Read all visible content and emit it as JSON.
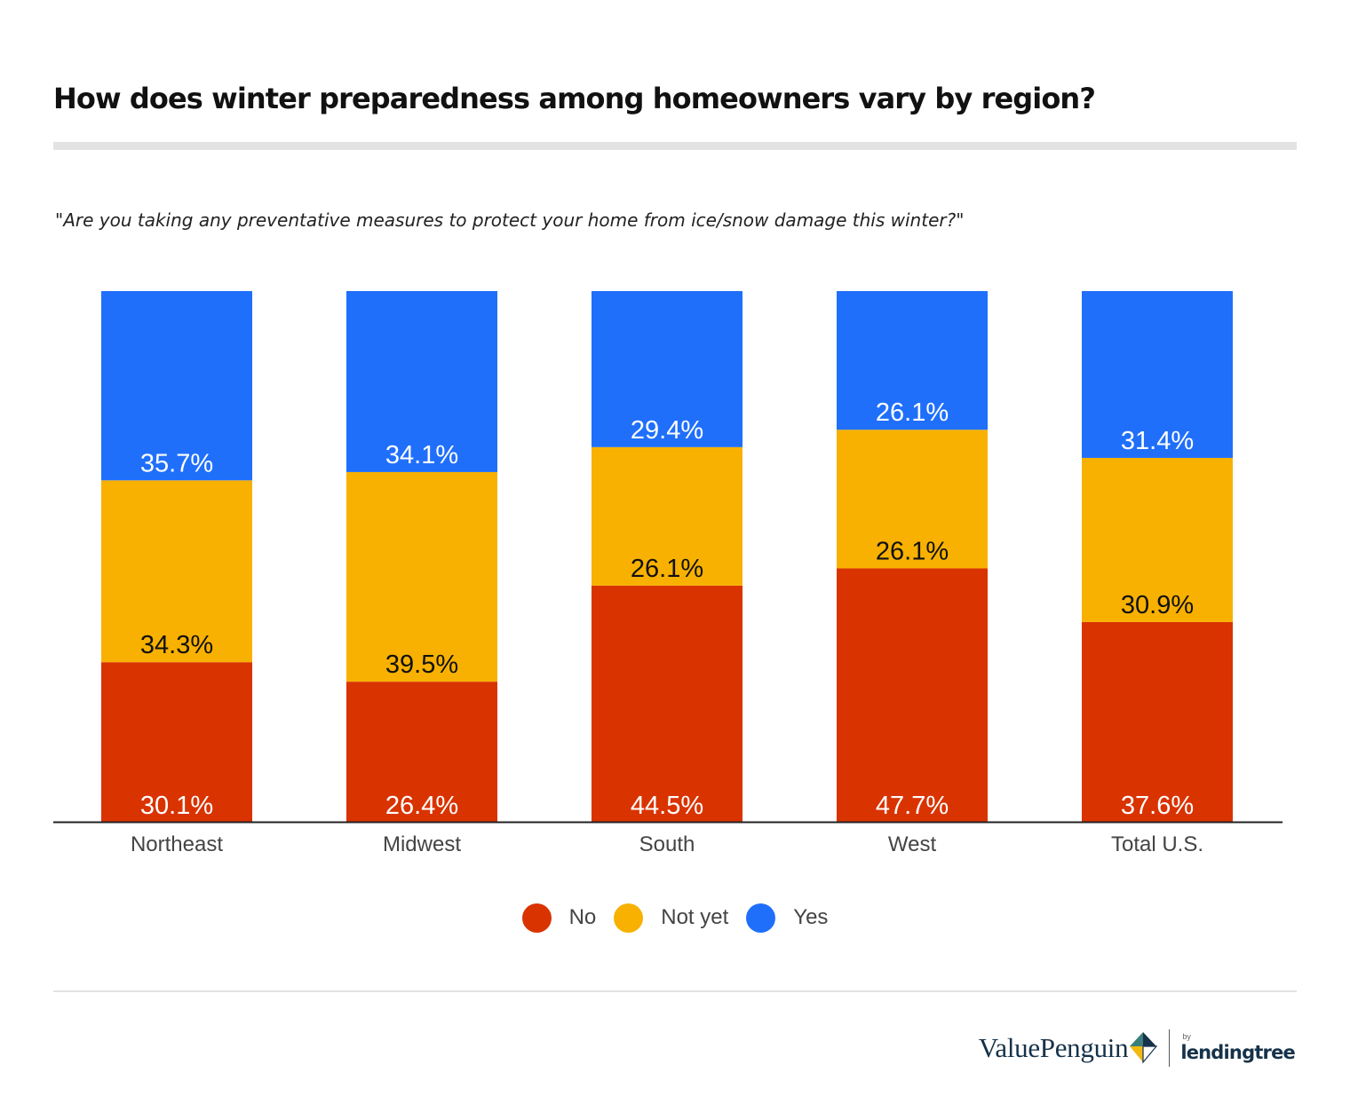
{
  "title": "How does winter preparedness among homeowners vary by region?",
  "subtitle": "\"Are you taking any preventative measures to protect your home from ice/snow damage this winter?\"",
  "colors": {
    "no": "#d93300",
    "not_yet": "#f8b100",
    "yes": "#1f6ffb"
  },
  "chart_data": {
    "type": "bar",
    "stacked": true,
    "normalized_percent": true,
    "title": "How does winter preparedness among homeowners vary by region?",
    "categories": [
      "Northeast",
      "Midwest",
      "South",
      "West",
      "Total U.S."
    ],
    "series": [
      {
        "name": "No",
        "values": [
          30.1,
          26.4,
          44.5,
          47.7,
          37.6
        ]
      },
      {
        "name": "Not yet",
        "values": [
          34.3,
          39.5,
          26.1,
          26.1,
          30.9
        ]
      },
      {
        "name": "Yes",
        "values": [
          35.7,
          34.1,
          29.4,
          26.1,
          31.4
        ]
      }
    ],
    "value_suffix": "%",
    "legend_position": "bottom-center",
    "xlabel": "",
    "ylabel": ""
  },
  "legend": [
    {
      "label": "No",
      "color": "#d93300"
    },
    {
      "label": "Not yet",
      "color": "#f8b100"
    },
    {
      "label": "Yes",
      "color": "#1f6ffb"
    }
  ],
  "brand": {
    "name": "ValuePenguin",
    "by": "by",
    "partner": "lendingtree"
  }
}
